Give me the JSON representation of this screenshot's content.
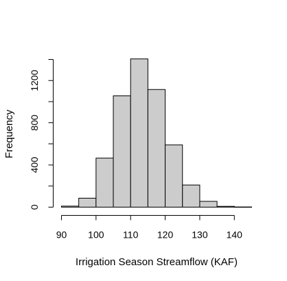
{
  "chart_data": {
    "type": "bar",
    "subtype": "histogram",
    "title": "",
    "xlabel": "Irrigation Season Streamflow (KAF)",
    "ylabel": "Frequency",
    "bin_edges": [
      90,
      95,
      100,
      105,
      110,
      115,
      120,
      125,
      130,
      135,
      140,
      145
    ],
    "values": [
      10,
      85,
      465,
      1055,
      1405,
      1115,
      590,
      210,
      55,
      8,
      2
    ],
    "xticks": [
      "90",
      "100",
      "110",
      "120",
      "130",
      "140"
    ],
    "yticks": [
      "0",
      "400",
      "800",
      "1200"
    ],
    "xlim": [
      90,
      145
    ],
    "ylim": [
      0,
      1400
    ],
    "grid": false,
    "bar_color": "#cccccc",
    "edge_color": "#000000"
  }
}
